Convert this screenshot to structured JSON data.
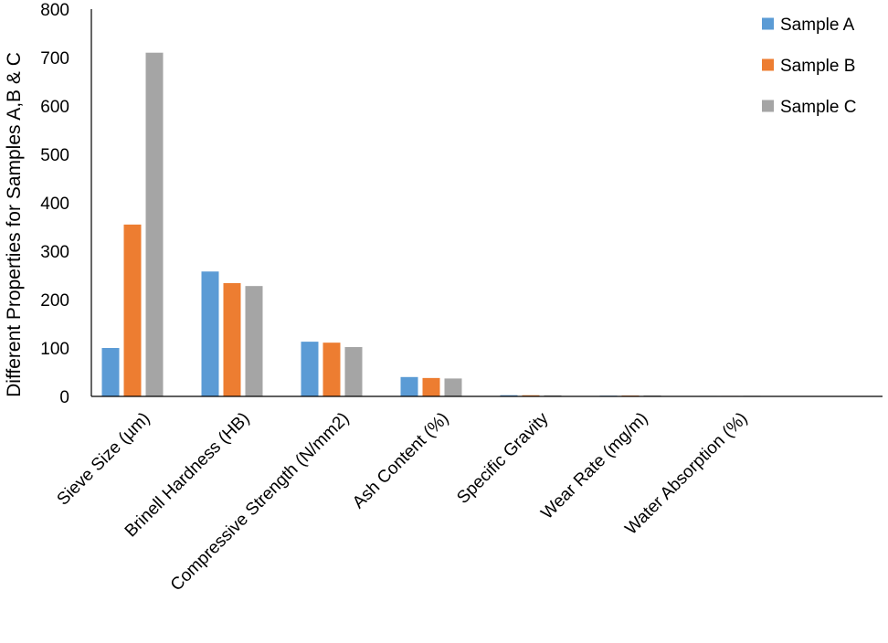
{
  "chart_data": {
    "type": "bar",
    "title": "",
    "xlabel": "",
    "ylabel": "Different Properties for Samples A,B & C",
    "ylim": [
      0,
      800
    ],
    "yticks": [
      0,
      100,
      200,
      300,
      400,
      500,
      600,
      700,
      800
    ],
    "grid": false,
    "legend_position": "top-right",
    "categories": [
      "Sieve Size (µm)",
      "Brinell Hardness (HB)",
      "Compressive Strength (N/mm2)",
      "Ash Content (%)",
      "Specific Gravity",
      "Wear Rate (mg/m)",
      "Water Absorption (%)"
    ],
    "series": [
      {
        "name": "Sample A",
        "color": "#5b9bd5",
        "values": [
          100,
          258,
          113,
          40,
          2.5,
          1.5,
          1
        ]
      },
      {
        "name": "Sample B",
        "color": "#ed7d31",
        "values": [
          355,
          234,
          111,
          38,
          2.4,
          1.8,
          1
        ]
      },
      {
        "name": "Sample C",
        "color": "#a5a5a5",
        "values": [
          710,
          228,
          102,
          37,
          2.3,
          2,
          1.2
        ]
      }
    ]
  }
}
